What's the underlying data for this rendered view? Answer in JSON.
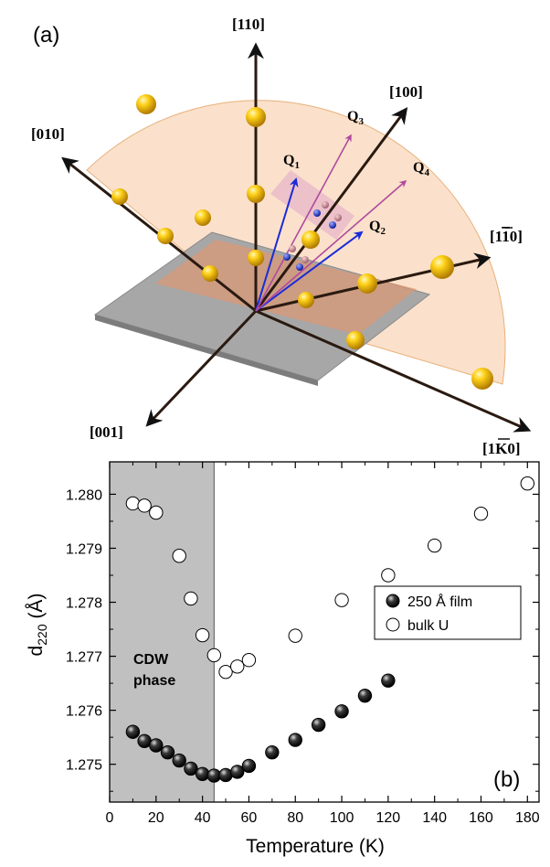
{
  "panel_a": {
    "label": "(a)",
    "axes": {
      "a110": "[110]",
      "a100": "[100]",
      "a010": "[010]",
      "a1bar10": "[1",
      "a1bar10_bar": "1",
      "a1bar10_end": "0]",
      "a001": "[001]",
      "a1k0": "[1",
      "a1k0_bar": "K",
      "a1k0_end": "0]"
    },
    "q_vectors": {
      "q1": "Q",
      "q1_sub": "1",
      "q2": "Q",
      "q2_sub": "2",
      "q3": "Q",
      "q3_sub": "3",
      "q4": "Q",
      "q4_sub": "4"
    },
    "colors": {
      "sphere": "#f5c200",
      "q_vector": "#1a2bd8",
      "wedge": "#f7c9a0",
      "plate": "#9a9a9a"
    }
  },
  "chart_data": {
    "type": "scatter",
    "panel_label": "(b)",
    "xlabel": "Temperature (K)",
    "ylabel_main": "d",
    "ylabel_sub": "220",
    "ylabel_unit": " (Å)",
    "xlim": [
      0,
      185
    ],
    "ylim": [
      1.2743,
      1.2806
    ],
    "xticks": [
      0,
      20,
      40,
      60,
      80,
      100,
      120,
      140,
      160,
      180
    ],
    "yticks": [
      1.275,
      1.276,
      1.277,
      1.278,
      1.279,
      1.28
    ],
    "ytick_labels": [
      "1.275",
      "1.276",
      "1.277",
      "1.278",
      "1.279",
      "1.280"
    ],
    "shaded_region": {
      "x0": 0,
      "x1": 45,
      "label_line1": "CDW",
      "label_line2": "phase",
      "color": "#c0c0c0"
    },
    "legend": {
      "position": "right",
      "film": "250 Å film",
      "bulk": "bulk U"
    },
    "series": [
      {
        "name": "250 Å film",
        "marker": "filled",
        "x": [
          10,
          15,
          20,
          25,
          30,
          35,
          40,
          45,
          50,
          55,
          60,
          70,
          80,
          90,
          100,
          110,
          120
        ],
        "y": [
          1.2756,
          1.27543,
          1.27535,
          1.27522,
          1.27507,
          1.27492,
          1.27482,
          1.27479,
          1.2748,
          1.27486,
          1.27497,
          1.27522,
          1.27545,
          1.27573,
          1.27598,
          1.27627,
          1.27655
        ]
      },
      {
        "name": "bulk U",
        "marker": "open",
        "x": [
          10,
          15,
          20,
          30,
          35,
          40,
          45,
          50,
          55,
          60,
          80,
          100,
          120,
          140,
          160,
          180
        ],
        "y": [
          1.27983,
          1.27979,
          1.27966,
          1.27886,
          1.27807,
          1.27739,
          1.27702,
          1.27671,
          1.27681,
          1.27693,
          1.27738,
          1.27804,
          1.2785,
          1.27905,
          1.27964,
          1.2802
        ]
      }
    ]
  }
}
